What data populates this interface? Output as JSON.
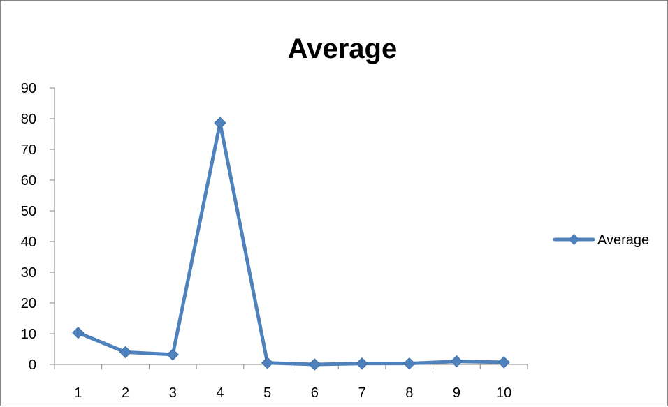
{
  "chart_data": {
    "type": "line",
    "title": "Average",
    "xlabel": "",
    "ylabel": "",
    "categories": [
      "1",
      "2",
      "3",
      "4",
      "5",
      "6",
      "7",
      "8",
      "9",
      "10"
    ],
    "series": [
      {
        "name": "Average",
        "values": [
          10.3,
          4.0,
          3.2,
          78.6,
          0.5,
          0.0,
          0.3,
          0.3,
          1.0,
          0.7
        ],
        "color": "#4f81bd",
        "marker": "diamond"
      }
    ],
    "ylim": [
      0,
      90
    ],
    "yticks": [
      "0",
      "10",
      "20",
      "30",
      "40",
      "50",
      "60",
      "70",
      "80",
      "90"
    ],
    "grid": false,
    "legend_position": "right"
  }
}
